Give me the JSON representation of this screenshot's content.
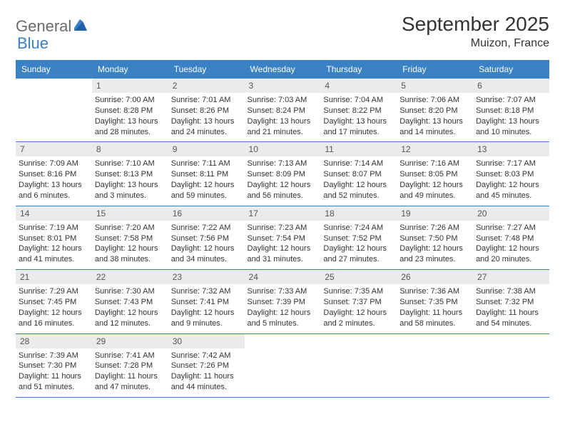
{
  "logo": {
    "text1": "General",
    "text2": "Blue"
  },
  "title": "September 2025",
  "location": "Muizon, France",
  "colors": {
    "header_bg": "#3b82c4",
    "header_text": "#ffffff",
    "daynum_bg": "#ebebeb",
    "daynum_text": "#555555",
    "info_text": "#333333",
    "row_border": "#3b82c4",
    "logo_gray": "#6a6a6a",
    "logo_blue": "#3b7fc4"
  },
  "day_headers": [
    "Sunday",
    "Monday",
    "Tuesday",
    "Wednesday",
    "Thursday",
    "Friday",
    "Saturday"
  ],
  "weeks": [
    [
      {
        "empty": true
      },
      {
        "num": "1",
        "sunrise": "Sunrise: 7:00 AM",
        "sunset": "Sunset: 8:28 PM",
        "daylight1": "Daylight: 13 hours",
        "daylight2": "and 28 minutes."
      },
      {
        "num": "2",
        "sunrise": "Sunrise: 7:01 AM",
        "sunset": "Sunset: 8:26 PM",
        "daylight1": "Daylight: 13 hours",
        "daylight2": "and 24 minutes."
      },
      {
        "num": "3",
        "sunrise": "Sunrise: 7:03 AM",
        "sunset": "Sunset: 8:24 PM",
        "daylight1": "Daylight: 13 hours",
        "daylight2": "and 21 minutes."
      },
      {
        "num": "4",
        "sunrise": "Sunrise: 7:04 AM",
        "sunset": "Sunset: 8:22 PM",
        "daylight1": "Daylight: 13 hours",
        "daylight2": "and 17 minutes."
      },
      {
        "num": "5",
        "sunrise": "Sunrise: 7:06 AM",
        "sunset": "Sunset: 8:20 PM",
        "daylight1": "Daylight: 13 hours",
        "daylight2": "and 14 minutes."
      },
      {
        "num": "6",
        "sunrise": "Sunrise: 7:07 AM",
        "sunset": "Sunset: 8:18 PM",
        "daylight1": "Daylight: 13 hours",
        "daylight2": "and 10 minutes."
      }
    ],
    [
      {
        "num": "7",
        "sunrise": "Sunrise: 7:09 AM",
        "sunset": "Sunset: 8:16 PM",
        "daylight1": "Daylight: 13 hours",
        "daylight2": "and 6 minutes."
      },
      {
        "num": "8",
        "sunrise": "Sunrise: 7:10 AM",
        "sunset": "Sunset: 8:13 PM",
        "daylight1": "Daylight: 13 hours",
        "daylight2": "and 3 minutes."
      },
      {
        "num": "9",
        "sunrise": "Sunrise: 7:11 AM",
        "sunset": "Sunset: 8:11 PM",
        "daylight1": "Daylight: 12 hours",
        "daylight2": "and 59 minutes."
      },
      {
        "num": "10",
        "sunrise": "Sunrise: 7:13 AM",
        "sunset": "Sunset: 8:09 PM",
        "daylight1": "Daylight: 12 hours",
        "daylight2": "and 56 minutes."
      },
      {
        "num": "11",
        "sunrise": "Sunrise: 7:14 AM",
        "sunset": "Sunset: 8:07 PM",
        "daylight1": "Daylight: 12 hours",
        "daylight2": "and 52 minutes."
      },
      {
        "num": "12",
        "sunrise": "Sunrise: 7:16 AM",
        "sunset": "Sunset: 8:05 PM",
        "daylight1": "Daylight: 12 hours",
        "daylight2": "and 49 minutes."
      },
      {
        "num": "13",
        "sunrise": "Sunrise: 7:17 AM",
        "sunset": "Sunset: 8:03 PM",
        "daylight1": "Daylight: 12 hours",
        "daylight2": "and 45 minutes."
      }
    ],
    [
      {
        "num": "14",
        "sunrise": "Sunrise: 7:19 AM",
        "sunset": "Sunset: 8:01 PM",
        "daylight1": "Daylight: 12 hours",
        "daylight2": "and 41 minutes."
      },
      {
        "num": "15",
        "sunrise": "Sunrise: 7:20 AM",
        "sunset": "Sunset: 7:58 PM",
        "daylight1": "Daylight: 12 hours",
        "daylight2": "and 38 minutes."
      },
      {
        "num": "16",
        "sunrise": "Sunrise: 7:22 AM",
        "sunset": "Sunset: 7:56 PM",
        "daylight1": "Daylight: 12 hours",
        "daylight2": "and 34 minutes."
      },
      {
        "num": "17",
        "sunrise": "Sunrise: 7:23 AM",
        "sunset": "Sunset: 7:54 PM",
        "daylight1": "Daylight: 12 hours",
        "daylight2": "and 31 minutes."
      },
      {
        "num": "18",
        "sunrise": "Sunrise: 7:24 AM",
        "sunset": "Sunset: 7:52 PM",
        "daylight1": "Daylight: 12 hours",
        "daylight2": "and 27 minutes."
      },
      {
        "num": "19",
        "sunrise": "Sunrise: 7:26 AM",
        "sunset": "Sunset: 7:50 PM",
        "daylight1": "Daylight: 12 hours",
        "daylight2": "and 23 minutes."
      },
      {
        "num": "20",
        "sunrise": "Sunrise: 7:27 AM",
        "sunset": "Sunset: 7:48 PM",
        "daylight1": "Daylight: 12 hours",
        "daylight2": "and 20 minutes."
      }
    ],
    [
      {
        "num": "21",
        "sunrise": "Sunrise: 7:29 AM",
        "sunset": "Sunset: 7:45 PM",
        "daylight1": "Daylight: 12 hours",
        "daylight2": "and 16 minutes."
      },
      {
        "num": "22",
        "sunrise": "Sunrise: 7:30 AM",
        "sunset": "Sunset: 7:43 PM",
        "daylight1": "Daylight: 12 hours",
        "daylight2": "and 12 minutes."
      },
      {
        "num": "23",
        "sunrise": "Sunrise: 7:32 AM",
        "sunset": "Sunset: 7:41 PM",
        "daylight1": "Daylight: 12 hours",
        "daylight2": "and 9 minutes."
      },
      {
        "num": "24",
        "sunrise": "Sunrise: 7:33 AM",
        "sunset": "Sunset: 7:39 PM",
        "daylight1": "Daylight: 12 hours",
        "daylight2": "and 5 minutes."
      },
      {
        "num": "25",
        "sunrise": "Sunrise: 7:35 AM",
        "sunset": "Sunset: 7:37 PM",
        "daylight1": "Daylight: 12 hours",
        "daylight2": "and 2 minutes."
      },
      {
        "num": "26",
        "sunrise": "Sunrise: 7:36 AM",
        "sunset": "Sunset: 7:35 PM",
        "daylight1": "Daylight: 11 hours",
        "daylight2": "and 58 minutes."
      },
      {
        "num": "27",
        "sunrise": "Sunrise: 7:38 AM",
        "sunset": "Sunset: 7:32 PM",
        "daylight1": "Daylight: 11 hours",
        "daylight2": "and 54 minutes."
      }
    ],
    [
      {
        "num": "28",
        "sunrise": "Sunrise: 7:39 AM",
        "sunset": "Sunset: 7:30 PM",
        "daylight1": "Daylight: 11 hours",
        "daylight2": "and 51 minutes."
      },
      {
        "num": "29",
        "sunrise": "Sunrise: 7:41 AM",
        "sunset": "Sunset: 7:28 PM",
        "daylight1": "Daylight: 11 hours",
        "daylight2": "and 47 minutes."
      },
      {
        "num": "30",
        "sunrise": "Sunrise: 7:42 AM",
        "sunset": "Sunset: 7:26 PM",
        "daylight1": "Daylight: 11 hours",
        "daylight2": "and 44 minutes."
      },
      {
        "empty": true
      },
      {
        "empty": true
      },
      {
        "empty": true
      },
      {
        "empty": true
      }
    ]
  ]
}
